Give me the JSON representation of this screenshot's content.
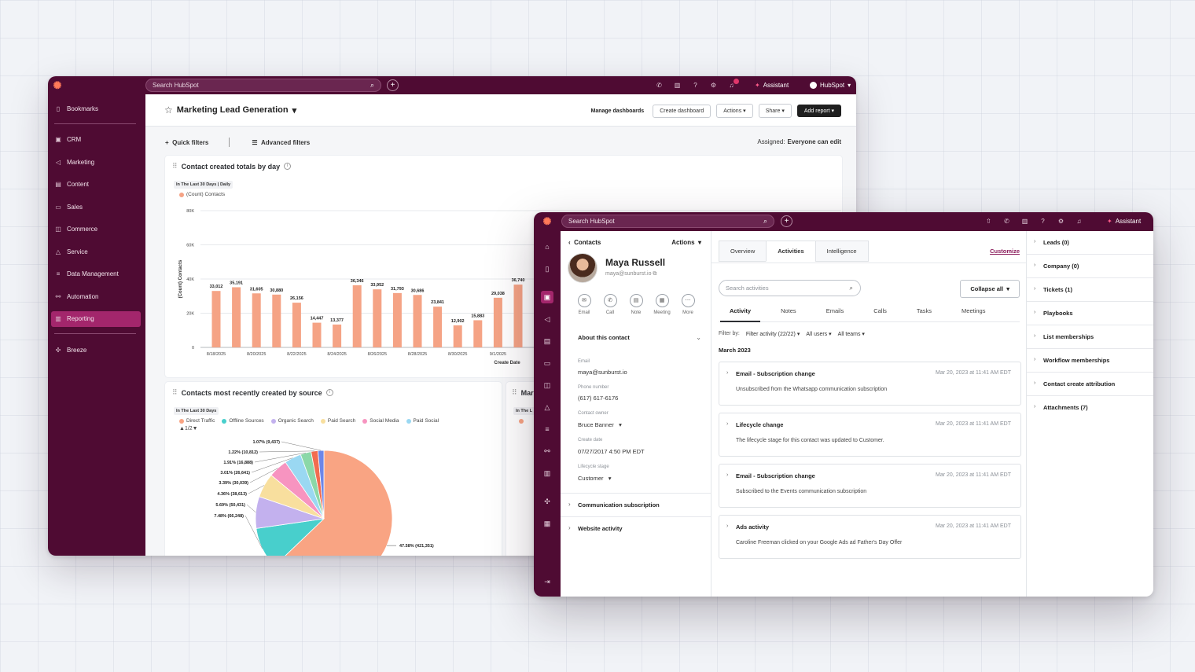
{
  "dashboard": {
    "search_placeholder": "Search HubSpot",
    "account": "HubSpot",
    "assistant": "Assistant",
    "sidebar": [
      {
        "label": "Bookmarks",
        "icon": "bookmark-icon"
      },
      {
        "label": "CRM",
        "icon": "crm-icon"
      },
      {
        "label": "Marketing",
        "icon": "megaphone-icon"
      },
      {
        "label": "Content",
        "icon": "content-icon"
      },
      {
        "label": "Sales",
        "icon": "sales-icon"
      },
      {
        "label": "Commerce",
        "icon": "commerce-icon"
      },
      {
        "label": "Service",
        "icon": "service-icon"
      },
      {
        "label": "Data Management",
        "icon": "database-icon"
      },
      {
        "label": "Automation",
        "icon": "automation-icon"
      },
      {
        "label": "Reporting",
        "icon": "reporting-icon",
        "active": true
      },
      {
        "label": "Breeze",
        "icon": "breeze-icon"
      }
    ],
    "title": "Marketing Lead Generation",
    "buttons": {
      "manage": "Manage dashboards",
      "create": "Create dashboard",
      "actions": "Actions",
      "share": "Share",
      "add_report": "Add report"
    },
    "filters": {
      "quick": "Quick filters",
      "advanced": "Advanced filters",
      "assigned_label": "Assigned:",
      "assigned_value": "Everyone can edit"
    },
    "card1": {
      "title": "Contact created totals by day",
      "tag": "In The Last 30 Days | Daily",
      "legend": "(Count) Contacts"
    },
    "card2": {
      "title": "Contacts most recently created by source",
      "tag": "In The Last 30 Days",
      "legend": [
        "Direct Traffic",
        "Offline Sources",
        "Organic Search",
        "Paid Search",
        "Social Media",
        "Paid Social"
      ],
      "pager": "1/2"
    },
    "card3": {
      "title": "Mar",
      "tag": "In The L"
    }
  },
  "chart_data": [
    {
      "type": "bar",
      "title": "Contact created totals by day",
      "ylabel": "(Count) Contacts",
      "xlabel": "Create Date",
      "ylim": [
        0,
        80000
      ],
      "yticks": [
        "0",
        "20K",
        "40K",
        "60K",
        "80K"
      ],
      "xticks": [
        "8/18/2025",
        "8/20/2025",
        "8/22/2025",
        "8/24/2025",
        "8/26/2025",
        "8/28/2025",
        "8/30/2025",
        "9/1/2025"
      ],
      "color": "#f5a385",
      "values": [
        33012,
        35191,
        31605,
        30880,
        26156,
        14447,
        13377,
        36346,
        33952,
        31793,
        30686,
        23841,
        12902,
        15883,
        29038,
        36740
      ],
      "labels": [
        "33,012",
        "35,191",
        "31,605",
        "30,880",
        "26,156",
        "14,447",
        "13,377",
        "36,346",
        "33,952",
        "31,793",
        "30,686",
        "23,841",
        "12,902",
        "15,883",
        "29,038",
        "36,740"
      ]
    },
    {
      "type": "pie",
      "title": "Contacts most recently created by source",
      "slices": [
        {
          "value": 421351,
          "label": "47.58% (421,351)",
          "color": "#f9a483"
        },
        {
          "value": 66248,
          "label": "7.48% (66,248)",
          "color": "#48cfcc"
        },
        {
          "value": 50431,
          "label": "5.69% (50,431)",
          "color": "#c3b1ee"
        },
        {
          "value": 38613,
          "label": "4.36% (38,613)",
          "color": "#f8df9e"
        },
        {
          "value": 30039,
          "label": "3.39% (30,039)",
          "color": "#f794c0"
        },
        {
          "value": 26641,
          "label": "3.01% (26,641)",
          "color": "#9ad8f2"
        },
        {
          "value": 16888,
          "label": "1.91% (16,888)",
          "color": "#8bd8a8"
        },
        {
          "value": 10812,
          "label": "1.22% (10,812)",
          "color": "#f26c4f"
        },
        {
          "value": 9437,
          "label": "1.07% (9,437)",
          "color": "#6d86e8"
        }
      ]
    }
  ],
  "contact": {
    "search_placeholder": "Search HubSpot",
    "assistant": "Assistant",
    "breadcrumb": "Contacts",
    "actions": "Actions",
    "name": "Maya Russell",
    "email_sub": "maya@sunburst.io",
    "quick_actions": [
      {
        "label": "Email",
        "icon": "email-icon",
        "glyph": "✉"
      },
      {
        "label": "Call",
        "icon": "call-icon",
        "glyph": "✆"
      },
      {
        "label": "Note",
        "icon": "note-icon",
        "glyph": "▤"
      },
      {
        "label": "Meeting",
        "icon": "meeting-icon",
        "glyph": "▦"
      },
      {
        "label": "More",
        "icon": "more-icon",
        "glyph": "⋯"
      }
    ],
    "about_title": "About this contact",
    "fields": [
      {
        "label": "Email",
        "value": "maya@sunburst.io"
      },
      {
        "label": "Phone number",
        "value": "(617) 617-6176"
      },
      {
        "label": "Contact owner",
        "value": "Bruce Banner"
      },
      {
        "label": "Create date",
        "value": "07/27/2017 4:50 PM EDT"
      },
      {
        "label": "Lifecycle stage",
        "value": "Customer"
      }
    ],
    "comm_sub": "Communication subscription",
    "website_activity": "Website activity",
    "tabs": [
      "Overview",
      "Activities",
      "Intelligence"
    ],
    "customize": "Customize",
    "activity_search_placeholder": "Search activities",
    "collapse_all": "Collapse all",
    "subtabs": [
      "Activity",
      "Notes",
      "Emails",
      "Calls",
      "Tasks",
      "Meetings"
    ],
    "filter_by": "Filter by:",
    "filter_activity": "Filter activity (22/22)",
    "all_users": "All users",
    "all_teams": "All teams",
    "month": "March 2023",
    "activities": [
      {
        "title": "Email - Subscription change",
        "time": "Mar 20, 2023 at 11:41 AM EDT",
        "body": "Unsubscribed from the Whatsapp communication subscription"
      },
      {
        "title": "Lifecycle change",
        "time": "Mar 20, 2023 at 11:41 AM EDT",
        "body": "The lifecycle stage for this contact was updated to Customer."
      },
      {
        "title": "Email - Subscription change",
        "time": "Mar 20, 2023 at 11:41 AM EDT",
        "body": "Subscribed to the Events communication subscription"
      },
      {
        "title": "Ads activity",
        "time": "Mar 20, 2023 at 11:41 AM EDT",
        "body": "Caroline Freeman clicked on your Google Ads ad Father's Day Offer"
      }
    ],
    "right_panel": [
      "Leads (0)",
      "Company (0)",
      "Tickets (1)",
      "Playbooks",
      "List memberships",
      "Workflow memberships",
      "Contact create attribution",
      "Attachments (7)"
    ]
  }
}
